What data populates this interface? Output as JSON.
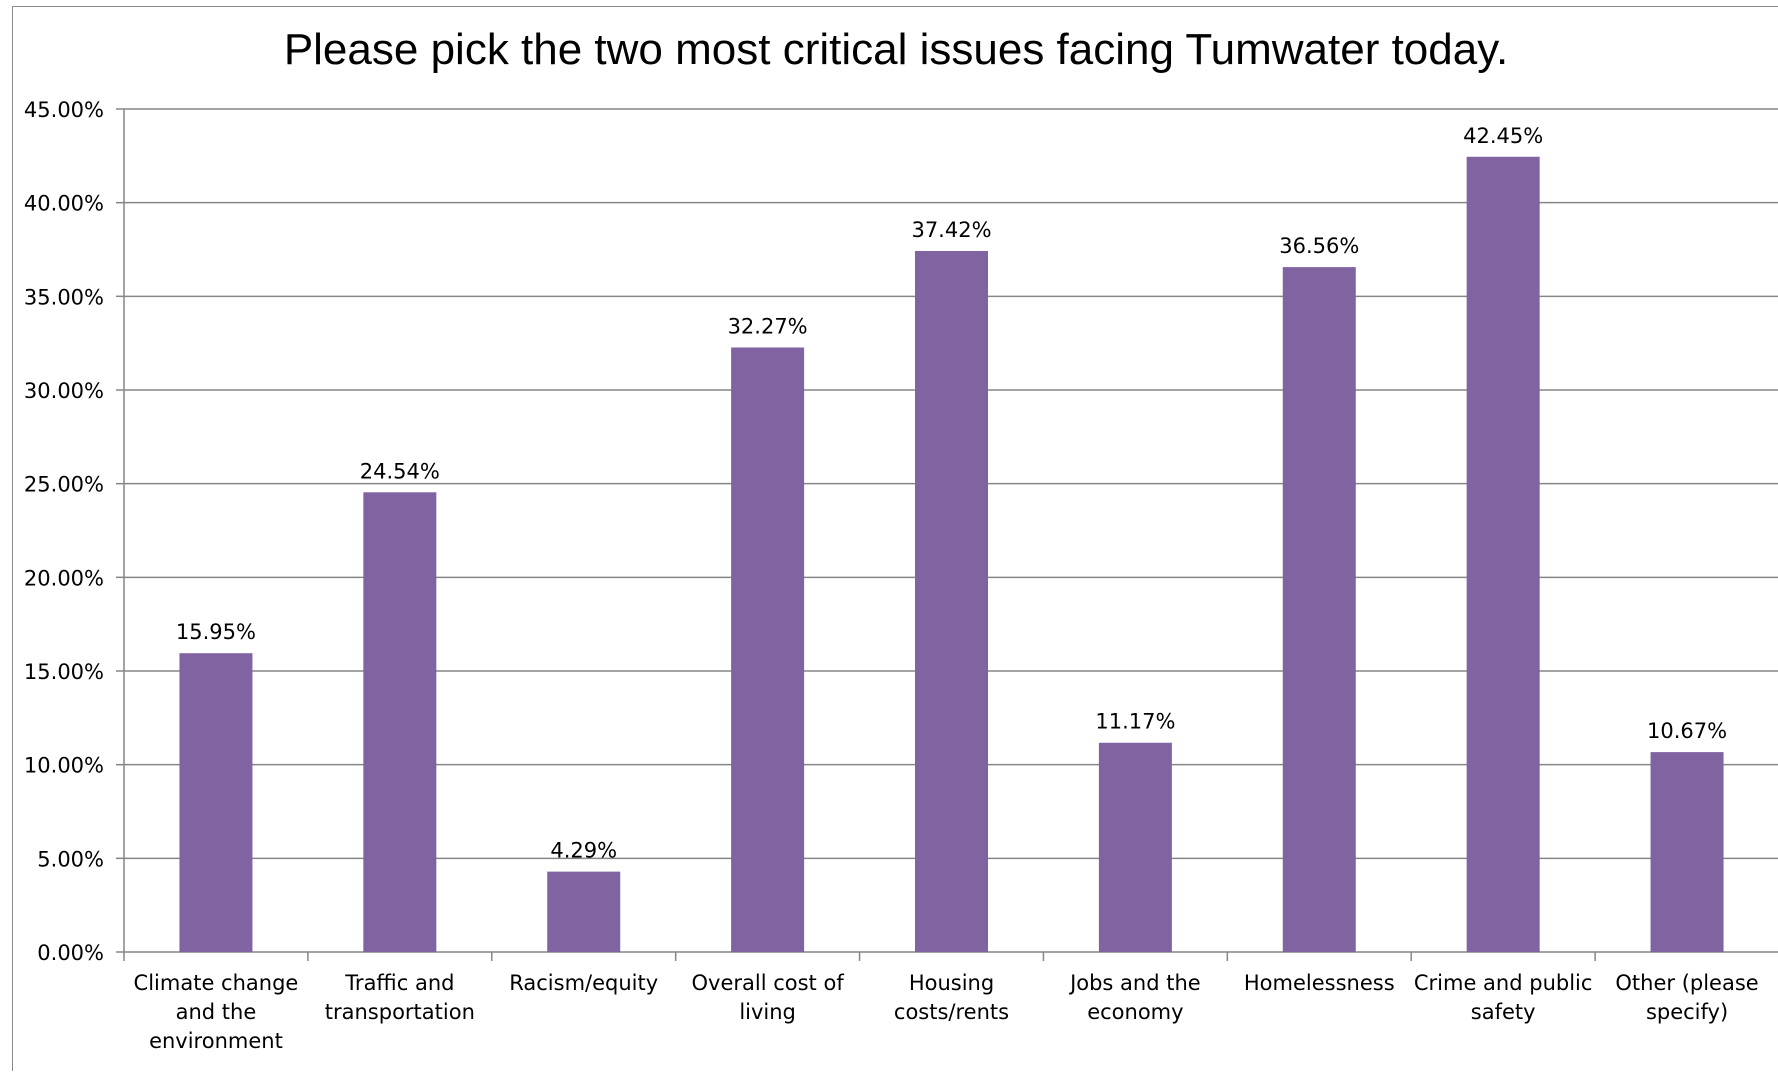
{
  "chart_data": {
    "type": "bar",
    "title": "Please pick the two most critical issues facing Tumwater today.",
    "xlabel": "",
    "ylabel": "",
    "categories": [
      "Climate change and the environment",
      "Traffic and transportation",
      "Racism/equity",
      "Overall cost of living",
      "Housing costs/rents",
      "Jobs and the economy",
      "Homelessness",
      "Crime and public safety",
      "Other (please specify)"
    ],
    "category_lines": [
      [
        "Climate change",
        "and the",
        "environment"
      ],
      [
        "Traffic and",
        "transportation"
      ],
      [
        "Racism/equity"
      ],
      [
        "Overall cost of",
        "living"
      ],
      [
        "Housing",
        "costs/rents"
      ],
      [
        "Jobs and the",
        "economy"
      ],
      [
        "Homelessness"
      ],
      [
        "Crime and public",
        "safety"
      ],
      [
        "Other (please",
        "specify)"
      ]
    ],
    "values": [
      15.95,
      24.54,
      4.29,
      32.27,
      37.42,
      11.17,
      36.56,
      42.45,
      10.67
    ],
    "value_labels": [
      "15.95%",
      "24.54%",
      "4.29%",
      "32.27%",
      "37.42%",
      "11.17%",
      "36.56%",
      "42.45%",
      "10.67%"
    ],
    "ylim": [
      0,
      45
    ],
    "yticks": [
      0,
      5,
      10,
      15,
      20,
      25,
      30,
      35,
      40,
      45
    ],
    "ytick_labels": [
      "0.00%",
      "5.00%",
      "10.00%",
      "15.00%",
      "20.00%",
      "25.00%",
      "30.00%",
      "35.00%",
      "40.00%",
      "45.00%"
    ],
    "grid": true,
    "legend": "none",
    "bar_color": "#8064a2",
    "grid_color": "#868686"
  }
}
